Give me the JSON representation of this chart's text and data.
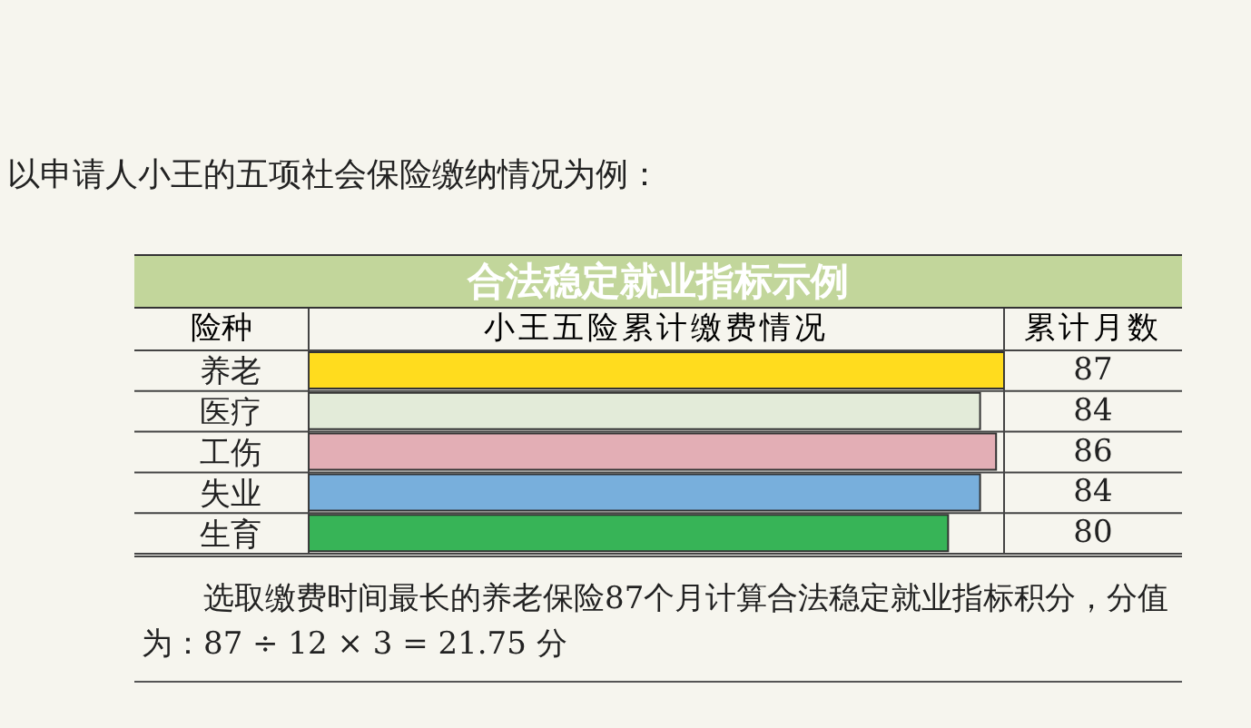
{
  "chart_data": {
    "type": "bar",
    "orientation": "horizontal",
    "title": "合法稳定就业指标示例",
    "ylabel": "险种",
    "xlabel": "小王五险累计缴费情况",
    "categories": [
      "养老",
      "医疗",
      "工伤",
      "失业",
      "生育"
    ],
    "values": [
      87,
      84,
      86,
      84,
      80
    ],
    "colors": [
      "#ffdc1e",
      "#e3ebd9",
      "#e3aeb5",
      "#78afdc",
      "#37b457"
    ],
    "data_labels": true,
    "tick_labels": "y",
    "annotations": [
      "以申请人小王的五项社会保险缴纳情况为例：",
      "累计月数",
      "选取缴费时间最长的养老保险87个月计算合法稳定就业指标积分，分值为：87 ÷ 12 × 3 = 21.75 分"
    ]
  }
}
